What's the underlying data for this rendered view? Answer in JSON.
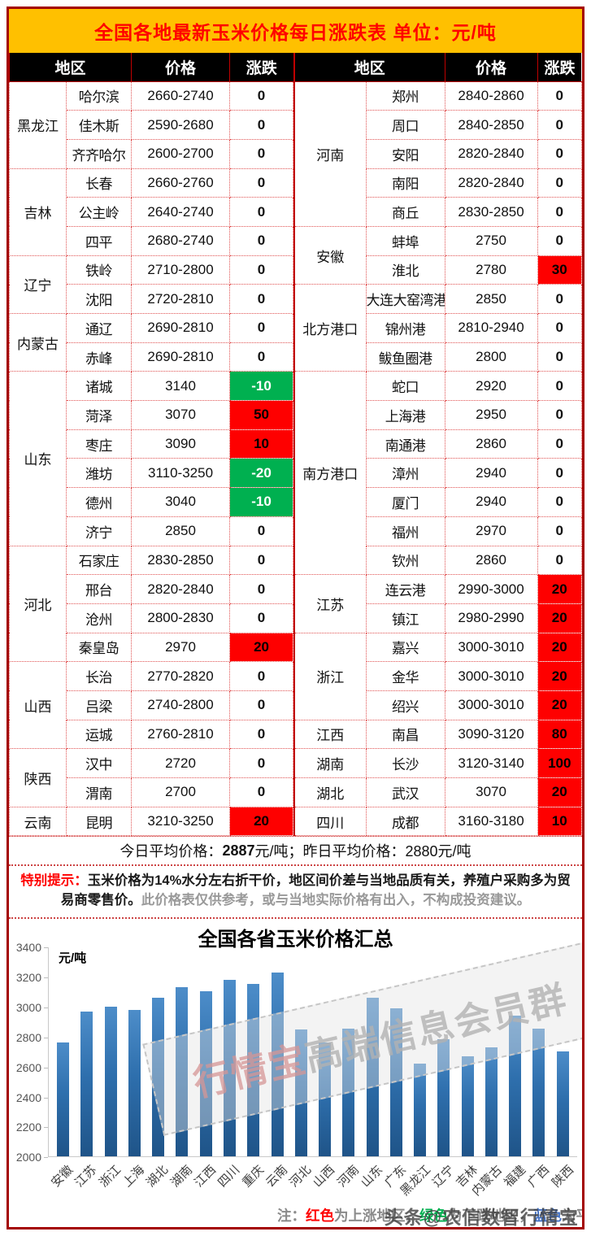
{
  "header": {
    "title": "全国各地最新玉米价格每日涨跌表  单位：元/吨"
  },
  "table": {
    "columns": {
      "region": "地区",
      "price": "价格",
      "change": "涨跌"
    },
    "left_groups": [
      {
        "province": "黑龙江",
        "rows": [
          {
            "city": "哈尔滨",
            "price": "2660-2740",
            "change": "0",
            "state": "flat"
          },
          {
            "city": "佳木斯",
            "price": "2590-2680",
            "change": "0",
            "state": "flat"
          },
          {
            "city": "齐齐哈尔",
            "price": "2600-2700",
            "change": "0",
            "state": "flat"
          }
        ]
      },
      {
        "province": "吉林",
        "rows": [
          {
            "city": "长春",
            "price": "2660-2760",
            "change": "0",
            "state": "flat"
          },
          {
            "city": "公主岭",
            "price": "2640-2740",
            "change": "0",
            "state": "flat"
          },
          {
            "city": "四平",
            "price": "2680-2740",
            "change": "0",
            "state": "flat"
          }
        ]
      },
      {
        "province": "辽宁",
        "rows": [
          {
            "city": "铁岭",
            "price": "2710-2800",
            "change": "0",
            "state": "flat"
          },
          {
            "city": "沈阳",
            "price": "2720-2810",
            "change": "0",
            "state": "flat"
          }
        ]
      },
      {
        "province": "内蒙古",
        "rows": [
          {
            "city": "通辽",
            "price": "2690-2810",
            "change": "0",
            "state": "flat"
          },
          {
            "city": "赤峰",
            "price": "2690-2810",
            "change": "0",
            "state": "flat"
          }
        ]
      },
      {
        "province": "山东",
        "rows": [
          {
            "city": "诸城",
            "price": "3140",
            "change": "-10",
            "state": "down"
          },
          {
            "city": "菏泽",
            "price": "3070",
            "change": "50",
            "state": "up"
          },
          {
            "city": "枣庄",
            "price": "3090",
            "change": "10",
            "state": "up"
          },
          {
            "city": "潍坊",
            "price": "3110-3250",
            "change": "-20",
            "state": "down"
          },
          {
            "city": "德州",
            "price": "3040",
            "change": "-10",
            "state": "down"
          },
          {
            "city": "济宁",
            "price": "2850",
            "change": "0",
            "state": "flat"
          }
        ]
      },
      {
        "province": "河北",
        "rows": [
          {
            "city": "石家庄",
            "price": "2830-2850",
            "change": "0",
            "state": "flat"
          },
          {
            "city": "邢台",
            "price": "2820-2840",
            "change": "0",
            "state": "flat"
          },
          {
            "city": "沧州",
            "price": "2800-2830",
            "change": "0",
            "state": "flat"
          },
          {
            "city": "秦皇岛",
            "price": "2970",
            "change": "20",
            "state": "up"
          }
        ]
      },
      {
        "province": "山西",
        "rows": [
          {
            "city": "长治",
            "price": "2770-2820",
            "change": "0",
            "state": "flat"
          },
          {
            "city": "吕梁",
            "price": "2740-2800",
            "change": "0",
            "state": "flat"
          },
          {
            "city": "运城",
            "price": "2760-2810",
            "change": "0",
            "state": "flat"
          }
        ]
      },
      {
        "province": "陕西",
        "rows": [
          {
            "city": "汉中",
            "price": "2720",
            "change": "0",
            "state": "flat"
          },
          {
            "city": "渭南",
            "price": "2700",
            "change": "0",
            "state": "flat"
          }
        ]
      },
      {
        "province": "云南",
        "rows": [
          {
            "city": "昆明",
            "price": "3210-3250",
            "change": "20",
            "state": "up"
          }
        ]
      }
    ],
    "right_groups": [
      {
        "province": "河南",
        "rows": [
          {
            "city": "郑州",
            "price": "2840-2860",
            "change": "0",
            "state": "flat"
          },
          {
            "city": "周口",
            "price": "2840-2850",
            "change": "0",
            "state": "flat"
          },
          {
            "city": "安阳",
            "price": "2820-2840",
            "change": "0",
            "state": "flat"
          },
          {
            "city": "南阳",
            "price": "2820-2840",
            "change": "0",
            "state": "flat"
          },
          {
            "city": "商丘",
            "price": "2830-2850",
            "change": "0",
            "state": "flat"
          }
        ]
      },
      {
        "province": "安徽",
        "rows": [
          {
            "city": "蚌埠",
            "price": "2750",
            "change": "0",
            "state": "flat"
          },
          {
            "city": "淮北",
            "price": "2780",
            "change": "30",
            "state": "up"
          }
        ]
      },
      {
        "province": "北方港口",
        "rows": [
          {
            "city": "大连大窑湾港",
            "price": "2850",
            "change": "0",
            "state": "flat"
          },
          {
            "city": "锦州港",
            "price": "2810-2940",
            "change": "0",
            "state": "flat"
          },
          {
            "city": "鲅鱼圈港",
            "price": "2800",
            "change": "0",
            "state": "flat"
          }
        ]
      },
      {
        "province": "南方港口",
        "rows": [
          {
            "city": "蛇口",
            "price": "2920",
            "change": "0",
            "state": "flat"
          },
          {
            "city": "上海港",
            "price": "2950",
            "change": "0",
            "state": "flat"
          },
          {
            "city": "南通港",
            "price": "2860",
            "change": "0",
            "state": "flat"
          },
          {
            "city": "漳州",
            "price": "2940",
            "change": "0",
            "state": "flat"
          },
          {
            "city": "厦门",
            "price": "2940",
            "change": "0",
            "state": "flat"
          },
          {
            "city": "福州",
            "price": "2970",
            "change": "0",
            "state": "flat"
          },
          {
            "city": "钦州",
            "price": "2860",
            "change": "0",
            "state": "flat"
          }
        ]
      },
      {
        "province": "江苏",
        "rows": [
          {
            "city": "连云港",
            "price": "2990-3000",
            "change": "20",
            "state": "up"
          },
          {
            "city": "镇江",
            "price": "2980-2990",
            "change": "20",
            "state": "up"
          }
        ]
      },
      {
        "province": "浙江",
        "rows": [
          {
            "city": "嘉兴",
            "price": "3000-3010",
            "change": "20",
            "state": "up"
          },
          {
            "city": "金华",
            "price": "3000-3010",
            "change": "20",
            "state": "up"
          },
          {
            "city": "绍兴",
            "price": "3000-3010",
            "change": "20",
            "state": "up"
          }
        ]
      },
      {
        "province": "江西",
        "rows": [
          {
            "city": "南昌",
            "price": "3090-3120",
            "change": "80",
            "state": "up"
          }
        ]
      },
      {
        "province": "湖南",
        "rows": [
          {
            "city": "长沙",
            "price": "3120-3140",
            "change": "100",
            "state": "up"
          }
        ]
      },
      {
        "province": "湖北",
        "rows": [
          {
            "city": "武汉",
            "price": "3070",
            "change": "20",
            "state": "up"
          }
        ]
      },
      {
        "province": "四川",
        "rows": [
          {
            "city": "成都",
            "price": "3160-3180",
            "change": "10",
            "state": "up"
          }
        ]
      }
    ]
  },
  "summary": {
    "today_label": "今日平均价格：",
    "today_value": "2887",
    "today_suffix": "元/吨；",
    "yesterday_label": "昨日平均价格：",
    "yesterday_value": "2880元/吨"
  },
  "notice": {
    "label": "特别提示：",
    "main": "玉米价格为14%水分左右折干价，地区间价差与当地品质有关，养殖户采购多为贸易商零售价。",
    "secondary": "此价格表仅供参考，或与当地实际价格有出入，不构成投资建议。"
  },
  "chart_data": {
    "type": "bar",
    "title": "全国各省玉米价格汇总",
    "ylabel": "元/吨",
    "ylim": [
      2000,
      3400
    ],
    "ytick_step": 200,
    "yticks": [
      2000,
      2200,
      2400,
      2600,
      2800,
      3000,
      3200,
      3400
    ],
    "grid": false,
    "legend_position": "none",
    "bar_color": "#2E75B6",
    "categories": [
      "安徽",
      "江苏",
      "浙江",
      "上海",
      "湖北",
      "湖南",
      "江西",
      "四川",
      "重庆",
      "云南",
      "河北",
      "山西",
      "河南",
      "山东",
      "广东",
      "黑龙江",
      "辽宁",
      "吉林",
      "内蒙古",
      "福建",
      "广西",
      "陕西"
    ],
    "values": [
      2760,
      2965,
      3000,
      2980,
      3060,
      3130,
      3105,
      3180,
      3150,
      3230,
      2850,
      2760,
      2855,
      3060,
      2990,
      2620,
      2785,
      2670,
      2730,
      2940,
      2855,
      2700
    ]
  },
  "chart_note": {
    "prefix": "注：",
    "prefix_color": "#8a8a8a",
    "segments": [
      {
        "text": "红色",
        "color": "#ff0000"
      },
      {
        "text": "为上涨地区，",
        "color": "#8a8a8a"
      },
      {
        "text": "绿色",
        "color": "#00b050"
      },
      {
        "text": "为下跌地区，",
        "color": "#8a8a8a"
      },
      {
        "text": "蓝色",
        "color": "#4472c4"
      },
      {
        "text": "为平稳地区",
        "color": "#8a8a8a"
      }
    ]
  },
  "watermarks": {
    "chart_box_red": "行情宝",
    "chart_box_gray": "高端信息会员群",
    "corner": "头条@农信数智行情宝"
  },
  "colors": {
    "frame_border": "#a40000",
    "title_bg": "#ffc000",
    "title_text": "#ff0000",
    "col_header_bg": "#000000",
    "up_bg": "#fe0000",
    "down_bg": "#00b050"
  }
}
